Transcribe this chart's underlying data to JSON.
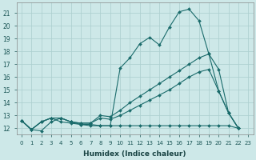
{
  "xlabel": "Humidex (Indice chaleur)",
  "background_color": "#cde8e8",
  "grid_color": "#aacece",
  "line_color": "#1a6b6b",
  "xlim": [
    -0.5,
    23.5
  ],
  "ylim": [
    11.5,
    21.8
  ],
  "xticks": [
    0,
    1,
    2,
    3,
    4,
    5,
    6,
    7,
    8,
    9,
    10,
    11,
    12,
    13,
    14,
    15,
    16,
    17,
    18,
    19,
    20,
    21,
    22,
    23
  ],
  "yticks": [
    12,
    13,
    14,
    15,
    16,
    17,
    18,
    19,
    20,
    21
  ],
  "series": [
    {
      "x": [
        0,
        1,
        2,
        3,
        4,
        5,
        6,
        7,
        8,
        9,
        10,
        11,
        12,
        13,
        14,
        15,
        16,
        17,
        18,
        19,
        20,
        21,
        22
      ],
      "y": [
        12.6,
        11.9,
        11.8,
        12.5,
        12.8,
        12.5,
        12.3,
        12.2,
        12.2,
        12.2,
        16.7,
        17.5,
        18.6,
        19.1,
        18.5,
        19.9,
        21.1,
        21.3,
        20.4,
        17.8,
        14.9,
        13.2,
        12.0
      ]
    },
    {
      "x": [
        0,
        1,
        2,
        3,
        4,
        5,
        6,
        7,
        8,
        9,
        10,
        11,
        12,
        13,
        14,
        15,
        16,
        17,
        18,
        19,
        20,
        21,
        22
      ],
      "y": [
        12.6,
        11.9,
        12.5,
        12.8,
        12.8,
        12.5,
        12.4,
        12.4,
        13.0,
        12.9,
        13.4,
        14.0,
        14.5,
        15.0,
        15.5,
        16.0,
        16.5,
        17.0,
        17.5,
        17.8,
        16.6,
        13.2,
        12.0
      ]
    },
    {
      "x": [
        0,
        1,
        2,
        3,
        4,
        5,
        6,
        7,
        8,
        9,
        10,
        11,
        12,
        13,
        14,
        15,
        16,
        17,
        18,
        19,
        20,
        21,
        22
      ],
      "y": [
        12.6,
        11.9,
        12.5,
        12.8,
        12.8,
        12.5,
        12.4,
        12.4,
        12.8,
        12.7,
        13.0,
        13.4,
        13.8,
        14.2,
        14.6,
        15.0,
        15.5,
        16.0,
        16.4,
        16.6,
        14.9,
        13.2,
        12.0
      ]
    },
    {
      "x": [
        0,
        1,
        2,
        3,
        4,
        5,
        6,
        7,
        8,
        9,
        10,
        11,
        12,
        13,
        14,
        15,
        16,
        17,
        18,
        19,
        20,
        21,
        22
      ],
      "y": [
        12.6,
        11.9,
        12.5,
        12.8,
        12.5,
        12.4,
        12.3,
        12.3,
        12.2,
        12.2,
        12.2,
        12.2,
        12.2,
        12.2,
        12.2,
        12.2,
        12.2,
        12.2,
        12.2,
        12.2,
        12.2,
        12.2,
        12.0
      ]
    }
  ]
}
